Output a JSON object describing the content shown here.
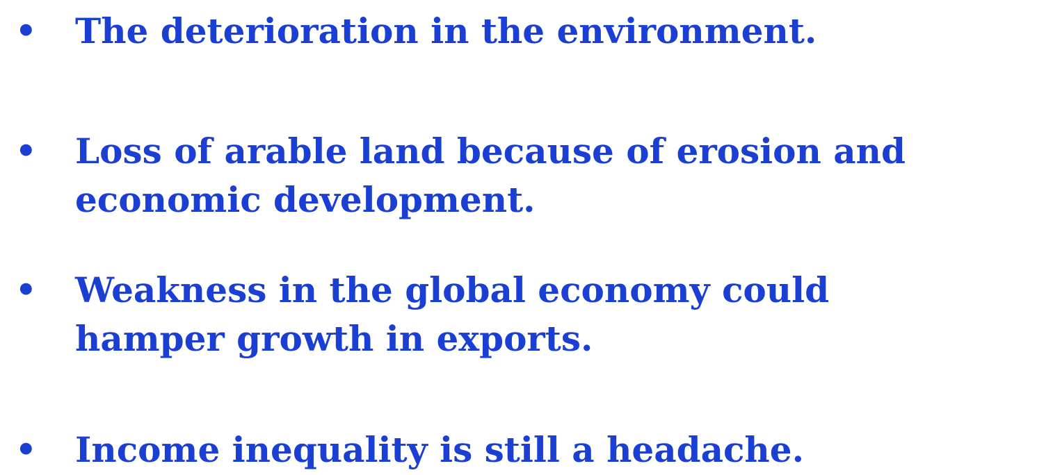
{
  "bullets": [
    {
      "lines": [
        "The deterioration in the environment."
      ]
    },
    {
      "lines": [
        "Loss of arable land because of erosion and",
        "economic development."
      ]
    },
    {
      "lines": [
        "Weakness in the global economy could",
        "hamper growth in exports."
      ]
    },
    {
      "lines": [
        "Income inequality is still a headache."
      ]
    }
  ]
}
